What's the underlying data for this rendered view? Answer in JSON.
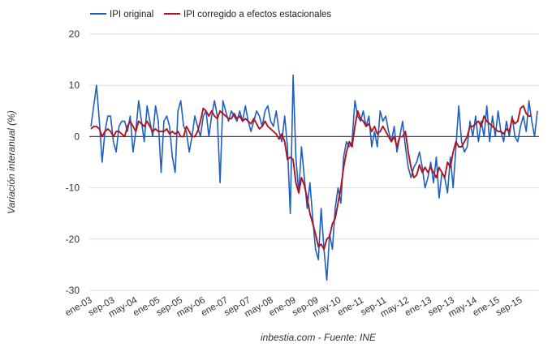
{
  "chart_data": {
    "type": "line",
    "legend": {
      "position": "top-left"
    },
    "ylabel": "Variación interanual (%)",
    "xlabel": "",
    "footer": "inbestia.com - Fuente: INE",
    "ylim": [
      -30,
      20
    ],
    "y_ticks": [
      20,
      10,
      0,
      -10,
      -20,
      -30
    ],
    "x_tick_labels": [
      "ene-03",
      "sep-03",
      "may-04",
      "ene-05",
      "sep-05",
      "may-06",
      "ene-07",
      "sep-07",
      "may-08",
      "ene-09",
      "sep-09",
      "may-10",
      "ene-11",
      "sep-11",
      "may-12",
      "ene-13",
      "sep-13",
      "may-14",
      "ene-15",
      "sep-15"
    ],
    "grid": true,
    "zero_line": true,
    "series": [
      {
        "name": "IPI original",
        "color": "#1f5fbf",
        "values": [
          2,
          6,
          10,
          3,
          -5,
          1,
          4,
          4,
          -1,
          -3,
          2,
          3,
          3,
          1,
          4,
          -3,
          1,
          7,
          3,
          -1,
          6,
          3,
          0,
          6,
          3,
          -7,
          3,
          4,
          2,
          -4,
          -7,
          5,
          7,
          2,
          1,
          -3,
          0,
          4,
          2,
          0,
          4,
          5,
          0,
          4,
          7,
          4,
          -9,
          7,
          5,
          3,
          5,
          4,
          3,
          5,
          3,
          6,
          3,
          1,
          3,
          5,
          4,
          2,
          5,
          6,
          3,
          2,
          5,
          1,
          -1,
          4,
          -2,
          -15,
          12,
          -4,
          -11,
          -2,
          -8,
          -14,
          -9,
          -16,
          -22,
          -24,
          -14,
          -22,
          -28,
          -19,
          -22,
          -14,
          -10,
          -13,
          -4,
          -1,
          -2,
          -1,
          7,
          4,
          3,
          5,
          2,
          4,
          -2,
          1,
          -2,
          5,
          3,
          4,
          1,
          -1,
          2,
          -3,
          0,
          3,
          -2,
          -6,
          -8,
          -6,
          -5,
          -3,
          -6,
          -10,
          -8,
          -5,
          -9,
          -4,
          -12,
          -7,
          -8,
          -11,
          -4,
          -10,
          -2,
          6,
          -1,
          -3,
          -2,
          3,
          0,
          4,
          -1,
          3,
          0,
          6,
          -1,
          4,
          0,
          5,
          1,
          -1,
          3,
          0,
          4,
          0,
          -1,
          2,
          4,
          1,
          7,
          3,
          0,
          5
        ]
      },
      {
        "name": "IPI corregido a efectos estacionales",
        "color": "#b1121d",
        "values": [
          1.5,
          2,
          2,
          1.5,
          0,
          1,
          1.5,
          1,
          0,
          1,
          1,
          0.5,
          0,
          2,
          3,
          2,
          1,
          3,
          2.5,
          2,
          3,
          2,
          1,
          1.5,
          1,
          1,
          1,
          1.5,
          0.5,
          1,
          0.5,
          1,
          0,
          0,
          2,
          1,
          0,
          0,
          1,
          3,
          5.5,
          5,
          4,
          5,
          4,
          3.5,
          5,
          4.5,
          4,
          3.5,
          3.5,
          4.5,
          3.5,
          4,
          3,
          3.5,
          3,
          2.5,
          3.5,
          2.5,
          1.5,
          2,
          3,
          2,
          1.5,
          1,
          0.5,
          -0.5,
          0.5,
          -1,
          -4.5,
          -4,
          -4.5,
          -9,
          -11,
          -8,
          -9.5,
          -12,
          -15,
          -17,
          -19,
          -21.5,
          -21,
          -22,
          -20,
          -19.5,
          -17,
          -16,
          -13,
          -10,
          -6,
          -3,
          -1,
          -2,
          2,
          5,
          3.5,
          3,
          2,
          2.5,
          1,
          2,
          0.5,
          1,
          2,
          1,
          0,
          -1,
          0,
          -2,
          0,
          0,
          1,
          -3,
          -6,
          -8,
          -7.5,
          -5.5,
          -7,
          -6,
          -7,
          -6,
          -7,
          -8,
          -6,
          -7,
          -8,
          -5,
          -6,
          -3,
          -1,
          -2,
          -2,
          -1,
          0,
          2,
          2,
          2.5,
          3,
          2,
          4,
          3,
          2.5,
          2,
          1.5,
          1,
          1,
          0.5,
          1.5,
          1,
          3.5,
          2.5,
          3,
          5.5,
          6,
          4.5,
          4,
          4
        ]
      }
    ]
  }
}
